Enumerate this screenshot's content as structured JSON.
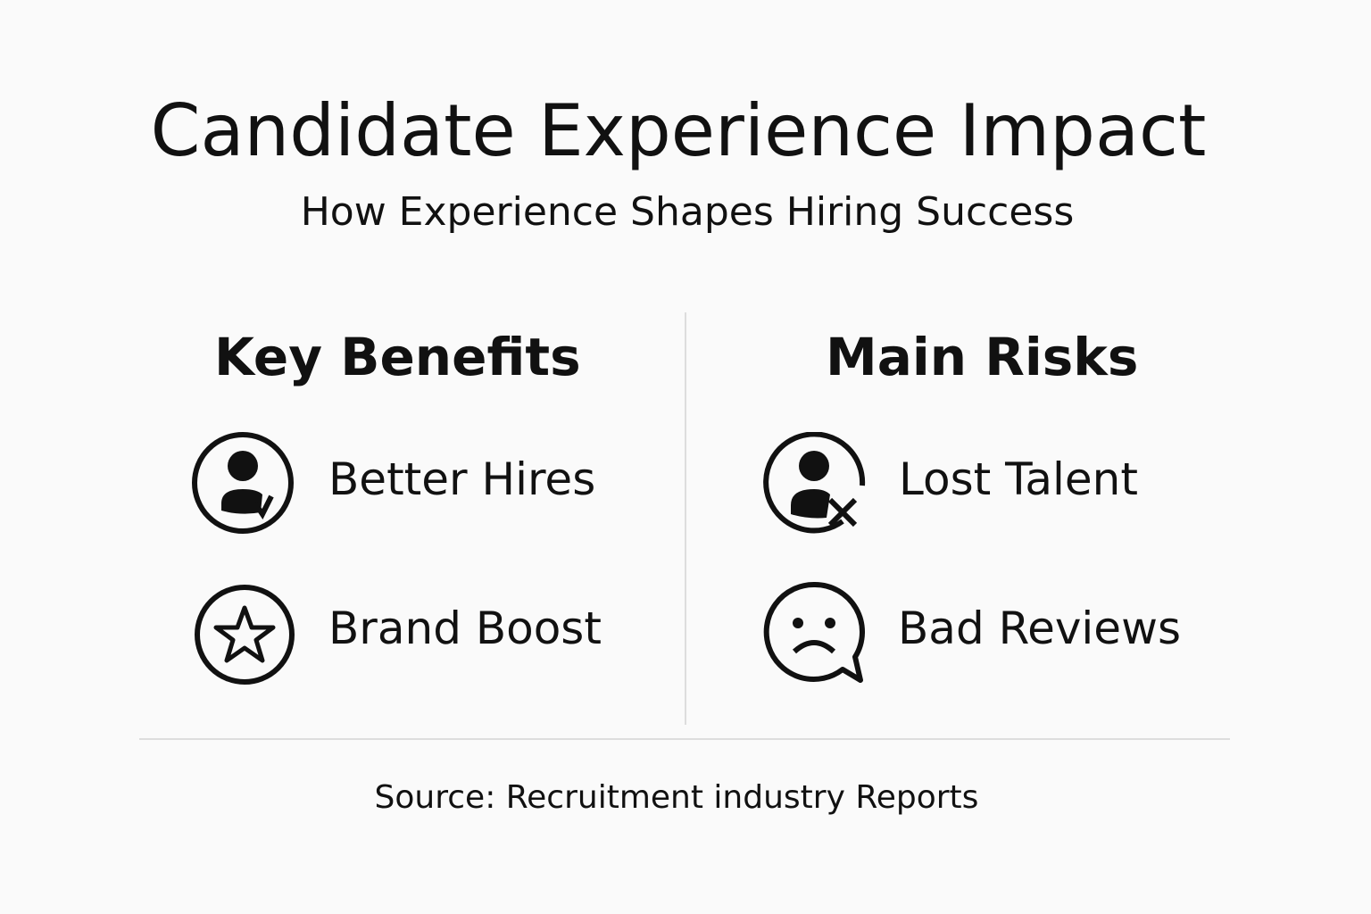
{
  "title": "Candidate Experience Impact",
  "subtitle": "How Experience Shapes Hiring Success",
  "benefits": {
    "heading": "Key Benefits",
    "items": [
      {
        "label": "Better Hires",
        "icon": "person-check-icon"
      },
      {
        "label": "Brand Boost",
        "icon": "star-icon"
      }
    ]
  },
  "risks": {
    "heading": "Main Risks",
    "items": [
      {
        "label": "Lost Talent",
        "icon": "person-x-icon"
      },
      {
        "label": "Bad Reviews",
        "icon": "sad-speech-bubble-icon"
      }
    ]
  },
  "source": "Source: Recruitment industry Reports"
}
